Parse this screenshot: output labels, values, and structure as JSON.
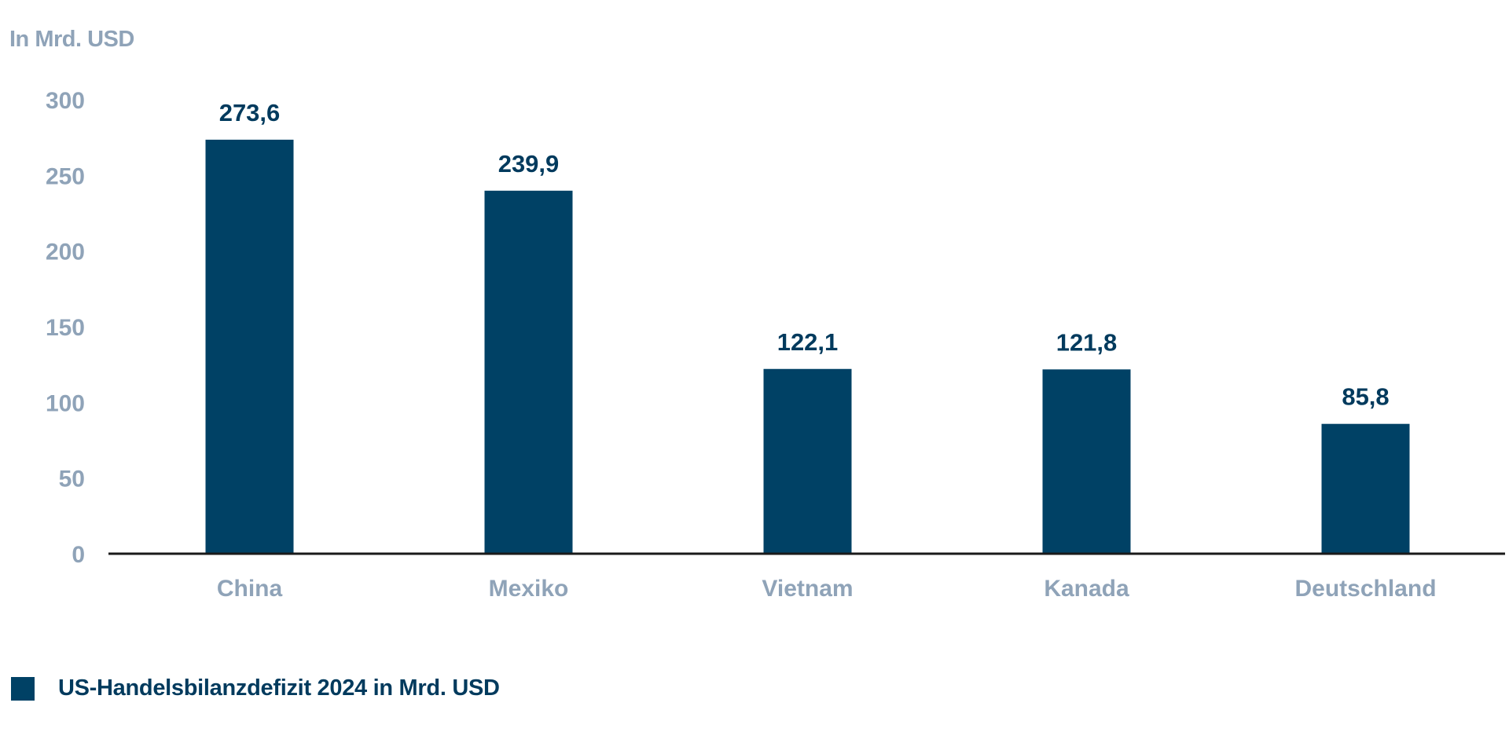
{
  "colors": {
    "bar": "#004165",
    "axis_text": "#8fa3b8",
    "value_text": "#003a5d",
    "axis_line": "#1a1a1a"
  },
  "chart_data": {
    "type": "bar",
    "title": "",
    "ylabel": "In Mrd. USD",
    "xlabel": "",
    "categories": [
      "China",
      "Mexiko",
      "Vietnam",
      "Kanada",
      "Deutschland"
    ],
    "series": [
      {
        "name": "US-Handelsbilanzdefizit 2024 in Mrd. USD",
        "values": [
          273.6,
          239.9,
          122.1,
          121.8,
          85.8
        ],
        "labels": [
          "273,6",
          "239,9",
          "122,1",
          "121,8",
          "85,8"
        ]
      }
    ],
    "ylim": [
      0,
      300
    ],
    "yticks": [
      0,
      50,
      100,
      150,
      200,
      250,
      300
    ],
    "grid": false,
    "legend": "bottom-left"
  }
}
